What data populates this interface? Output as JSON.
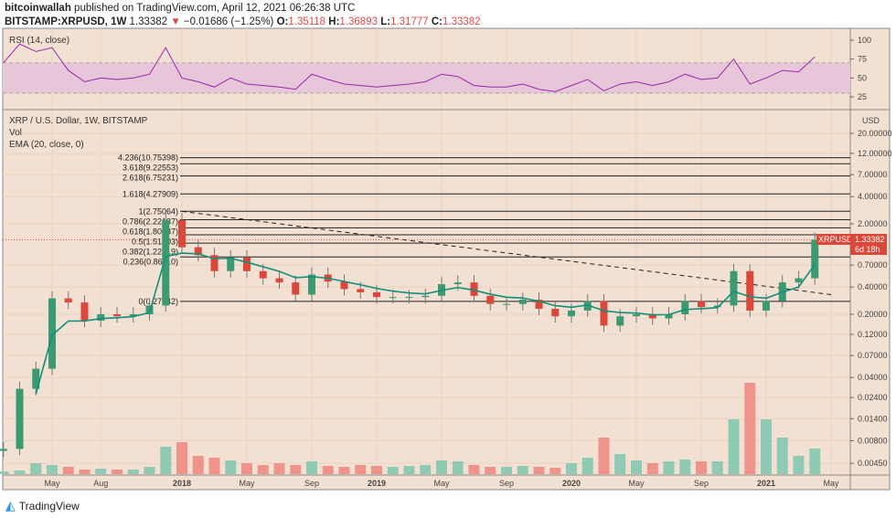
{
  "header": {
    "author": "bitcoinwallah",
    "published": "published on TradingView.com, April 12, 2021 06:26:38 UTC",
    "symbol": "BITSTAMP:XRPUSD, 1W",
    "last": "1.33382",
    "change": "−0.01686 (−1.25%)",
    "o_label": "O:",
    "o": "1.35118",
    "h_label": "H:",
    "h": "1.36893",
    "l_label": "L:",
    "l": "1.31777",
    "c_label": "C:",
    "c": "1.33382"
  },
  "rsi_pane": {
    "title": "RSI (14, close)",
    "ticks": [
      "100",
      "75",
      "50",
      "25"
    ]
  },
  "main_pane": {
    "title": "XRP / U.S. Dollar, 1W, BITSTAMP",
    "vol_label": "Vol",
    "ema_label": "EMA (20, close, 0)",
    "currency": "USD",
    "price_tag": "XRPUSD",
    "price_value": "1.33382",
    "countdown": "6d 18h"
  },
  "footer": {
    "brand": "TradingView"
  },
  "colors": {
    "background": "#f2e0d2",
    "up": "#3c9a72",
    "down": "#d9483b",
    "ema": "#138f7a",
    "rsi": "#9c27b0",
    "rsi_band": "#e6c6d8",
    "vol_up": "#8fcab4",
    "vol_down": "#f0938b"
  },
  "chart_data": {
    "type": "candlestick",
    "scale": "log",
    "y_ticks": [
      20,
      12,
      7,
      4,
      2,
      0.7,
      0.4,
      0.2,
      0.12,
      0.07,
      0.04,
      0.024,
      0.014,
      0.008,
      0.0045
    ],
    "y_tick_labels": [
      "20.00000",
      "12.00000",
      "7.00000",
      "4.00000",
      "2.00000",
      "0.70000",
      "0.40000",
      "0.20000",
      "0.12000",
      "0.07000",
      "0.04000",
      "0.02400",
      "0.01400",
      "0.00800",
      "0.00450"
    ],
    "x_tick_labels": [
      "May",
      "Aug",
      "2018",
      "May",
      "Sep",
      "2019",
      "May",
      "Sep",
      "2020",
      "May",
      "Sep",
      "2021",
      "May"
    ],
    "x_tick_months": [
      "2017-05",
      "2017-08",
      "2018-01",
      "2018-05",
      "2018-09",
      "2019-01",
      "2019-05",
      "2019-09",
      "2020-01",
      "2020-05",
      "2020-09",
      "2021-01",
      "2021-05"
    ],
    "start_month": "2017-02",
    "close": [
      0.0065,
      0.03,
      0.05,
      0.3,
      0.27,
      0.17,
      0.2,
      0.19,
      0.2,
      0.25,
      2.2,
      1.1,
      0.9,
      0.6,
      0.85,
      0.6,
      0.5,
      0.45,
      0.33,
      0.55,
      0.46,
      0.38,
      0.35,
      0.31,
      0.31,
      0.31,
      0.32,
      0.43,
      0.45,
      0.32,
      0.26,
      0.26,
      0.29,
      0.23,
      0.19,
      0.22,
      0.28,
      0.15,
      0.19,
      0.2,
      0.18,
      0.2,
      0.28,
      0.24,
      0.25,
      0.6,
      0.22,
      0.28,
      0.45,
      0.5,
      1.33382
    ],
    "volume": [
      3,
      4,
      12,
      10,
      8,
      5,
      6,
      5,
      5,
      8,
      30,
      35,
      20,
      18,
      15,
      12,
      10,
      12,
      10,
      14,
      9,
      8,
      10,
      9,
      8,
      9,
      10,
      15,
      14,
      10,
      8,
      8,
      9,
      8,
      7,
      12,
      18,
      40,
      22,
      15,
      12,
      14,
      16,
      14,
      14,
      60,
      100,
      60,
      40,
      20,
      28
    ],
    "rsi": [
      70,
      95,
      85,
      90,
      60,
      45,
      50,
      48,
      50,
      55,
      90,
      50,
      45,
      38,
      50,
      42,
      40,
      38,
      35,
      55,
      48,
      42,
      40,
      38,
      40,
      42,
      45,
      55,
      52,
      40,
      38,
      38,
      42,
      35,
      32,
      40,
      48,
      33,
      42,
      45,
      40,
      45,
      55,
      48,
      50,
      75,
      42,
      50,
      60,
      58,
      78
    ],
    "fib_levels": [
      {
        "label": "4.236(10.75398)",
        "price": 10.75398
      },
      {
        "label": "3.618(9.22553)",
        "price": 9.22553
      },
      {
        "label": "2.618(6.75231)",
        "price": 6.75231
      },
      {
        "label": "1.618(4.27909)",
        "price": 4.27909
      },
      {
        "label": "1(2.75064)",
        "price": 2.75064
      },
      {
        "label": "0.786(2.22137)",
        "price": 2.22137
      },
      {
        "label": "0.618(1.80587)",
        "price": 1.80587
      },
      {
        "label": "0.5(1.51403)",
        "price": 1.51403
      },
      {
        "label": "0.382(1.22219)",
        "price": 1.22219
      },
      {
        "label": "0.236(0.86110)",
        "price": 0.8611
      },
      {
        "label": "0(0.27742)",
        "price": 0.27742
      }
    ],
    "trendline": {
      "from": {
        "month": "2018-01",
        "price": 2.75
      },
      "to": {
        "month": "2021-05",
        "price": 0.33
      }
    },
    "current_price": 1.33382
  }
}
